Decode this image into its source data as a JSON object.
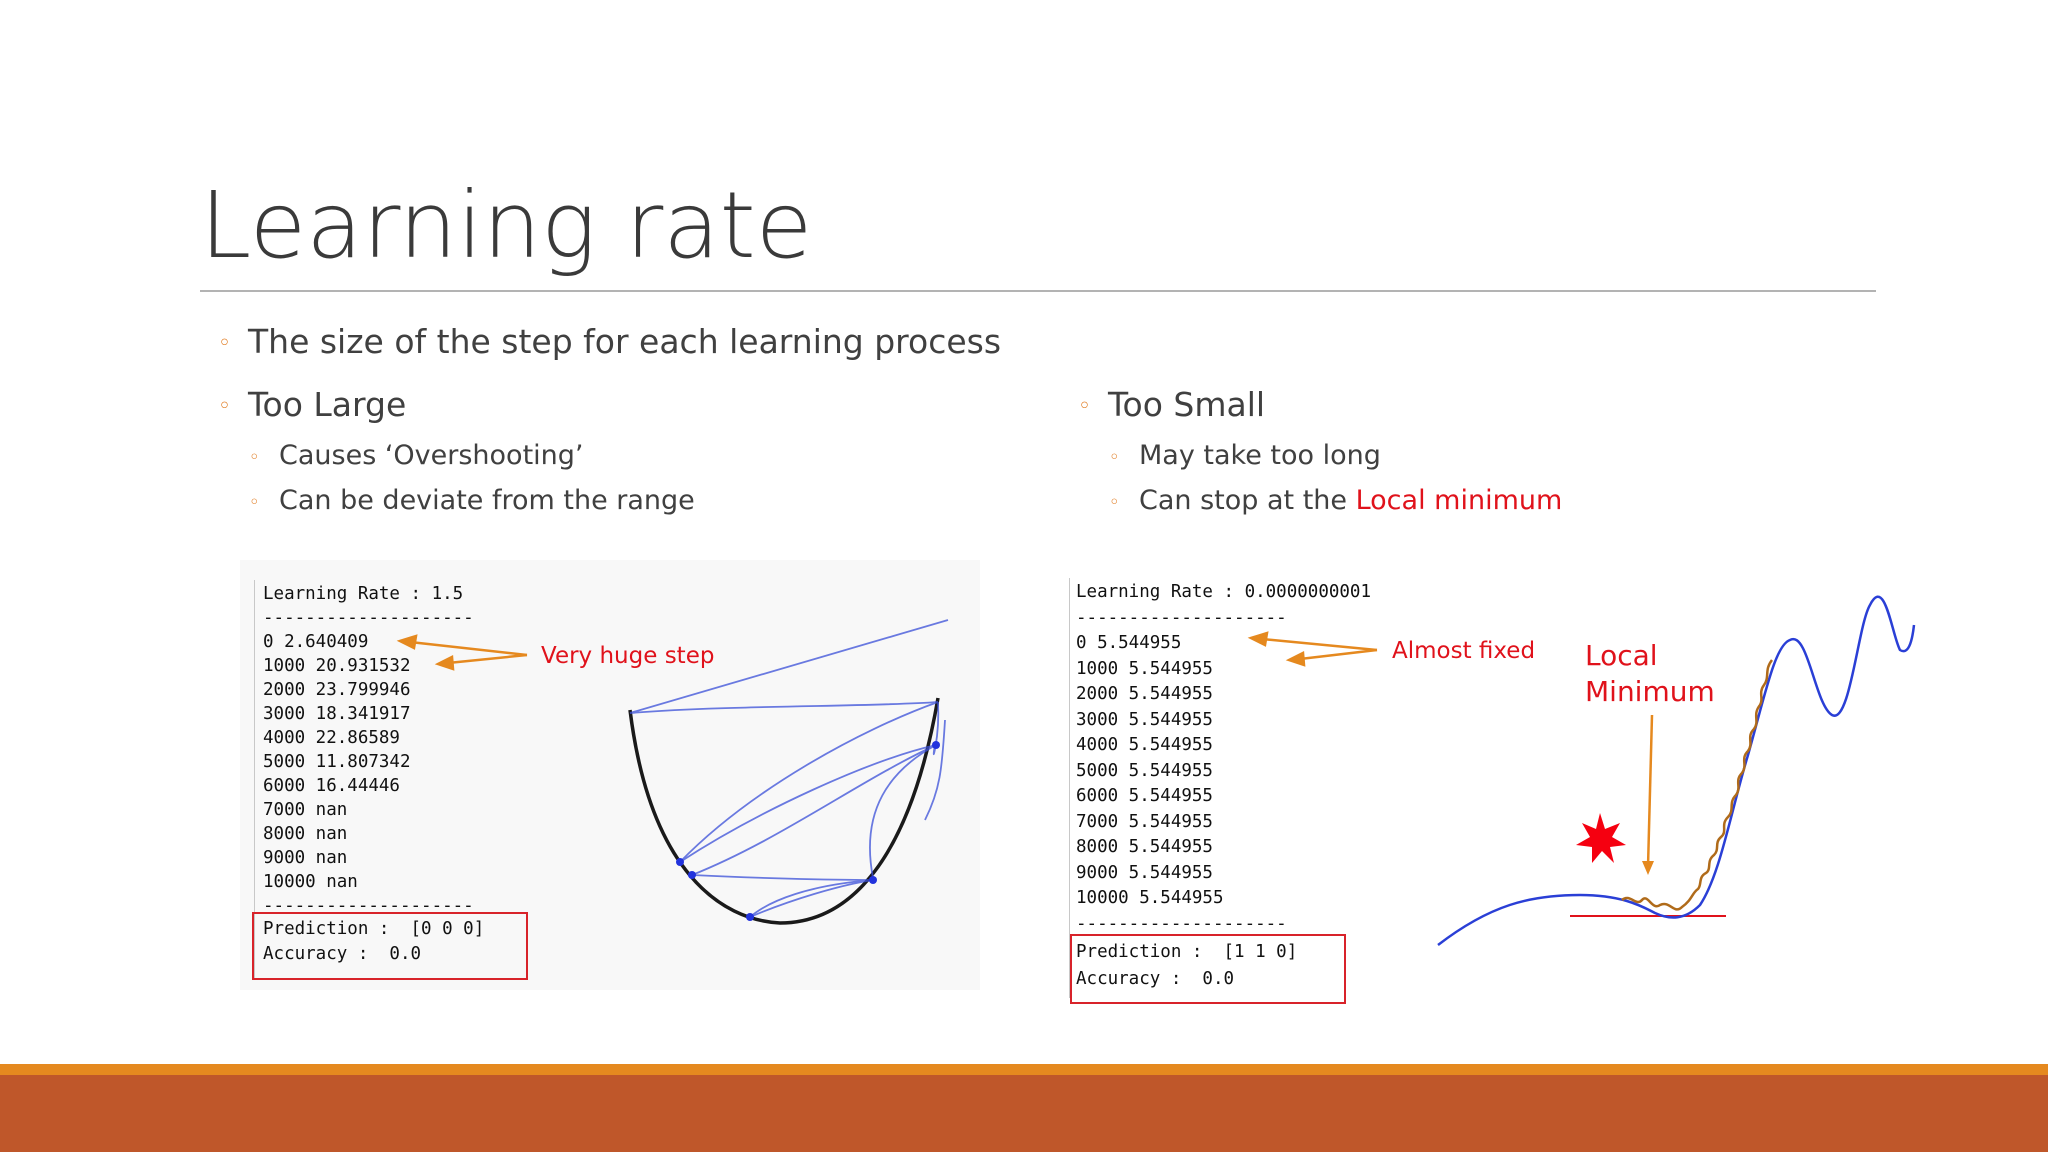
{
  "slide": {
    "title": "Learning rate",
    "bullets": {
      "intro": "The size of the step for each learning process",
      "too_large": "Too Large",
      "too_large_subs": [
        "Causes ‘Overshooting’",
        "Can be deviate from the range"
      ],
      "too_small": "Too Small",
      "too_small_sub1": "May take too long",
      "too_small_sub2_prefix": "Can stop at the ",
      "too_small_sub2_highlight": "Local minimum"
    },
    "left_panel": {
      "header": "Learning Rate : 1.5",
      "separator": "--------------------",
      "rows": [
        "0 2.640409",
        "1000 20.931532",
        "2000 23.799946",
        "3000 18.341917",
        "4000 22.86589",
        "5000 11.807342",
        "6000 16.44446",
        "7000 nan",
        "8000 nan",
        "9000 nan",
        "10000 nan"
      ],
      "prediction": "Prediction :  [0 0 0]",
      "accuracy": "Accuracy :  0.0",
      "annotation": "Very huge step"
    },
    "right_panel": {
      "header": "Learning Rate : 0.0000000001",
      "separator": "--------------------",
      "rows": [
        "0 5.544955",
        "1000 5.544955",
        "2000 5.544955",
        "3000 5.544955",
        "4000 5.544955",
        "5000 5.544955",
        "6000 5.544955",
        "7000 5.544955",
        "8000 5.544955",
        "9000 5.544955",
        "10000 5.544955"
      ],
      "prediction": "Prediction :  [1 1 0]",
      "accuracy": "Accuracy :  0.0",
      "annotation": "Almost fixed",
      "local_min_line1": "Local",
      "local_min_line2": "Minimum"
    },
    "colors": {
      "accent_orange": "#e5891f",
      "footer_rust": "#bf572a",
      "highlight_red": "#e0121b",
      "curve_blue": "#2a3fd6"
    }
  }
}
